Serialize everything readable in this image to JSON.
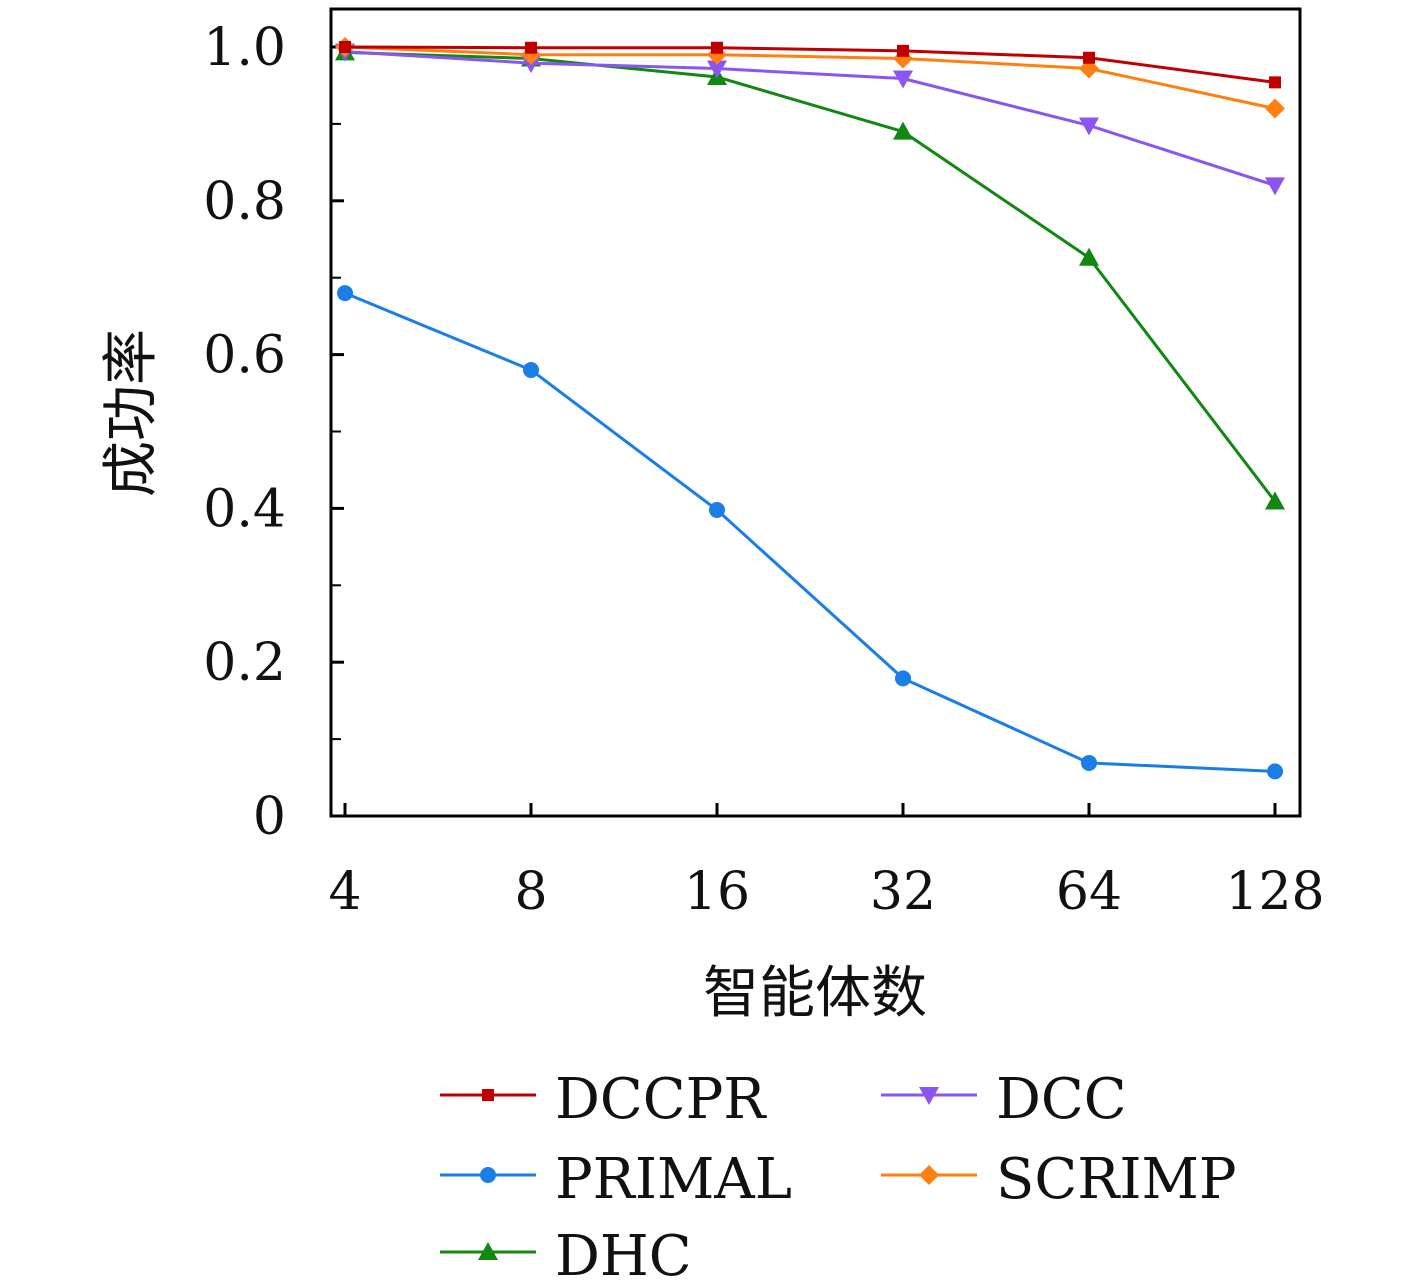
{
  "chart_data": {
    "type": "line",
    "categories": [
      "4",
      "8",
      "16",
      "32",
      "64",
      "128"
    ],
    "xlabel": "智能体数",
    "ylabel": "成功率",
    "ylim": [
      0,
      1.0
    ],
    "yticks": [
      "0",
      "0.2",
      "0.4",
      "0.6",
      "0.8",
      "1.0"
    ],
    "grid": false,
    "legend_position": "bottom",
    "series": [
      {
        "name": "DCCPR",
        "color": "#c00000",
        "marker": "square",
        "values": [
          1.0,
          0.999,
          0.999,
          0.995,
          0.986,
          0.954
        ]
      },
      {
        "name": "PRIMAL",
        "color": "#1a7ee6",
        "marker": "circle",
        "values": [
          0.68,
          0.58,
          0.398,
          0.179,
          0.069,
          0.058
        ]
      },
      {
        "name": "DHC",
        "color": "#118811",
        "marker": "triangle-up",
        "values": [
          0.993,
          0.985,
          0.961,
          0.89,
          0.726,
          0.409
        ]
      },
      {
        "name": "DCC",
        "color": "#8a55f0",
        "marker": "triangle-down",
        "values": [
          0.994,
          0.979,
          0.972,
          0.959,
          0.898,
          0.82
        ]
      },
      {
        "name": "SCRIMP",
        "color": "#ff8010",
        "marker": "diamond",
        "values": [
          1.0,
          0.99,
          0.99,
          0.985,
          0.972,
          0.92
        ]
      }
    ]
  }
}
